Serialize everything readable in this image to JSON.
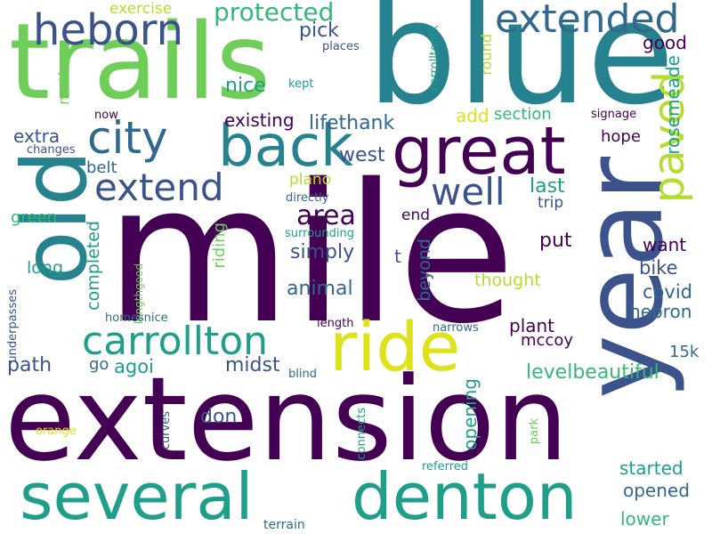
{
  "colors": {
    "dark_purple": "#440154",
    "indigo": "#3b528b",
    "slate_blue": "#31688e",
    "teal": "#26828e",
    "green_teal": "#1f9e89",
    "green": "#35b779",
    "light_green": "#6ece58",
    "lime": "#b5de2b",
    "yellow": "#dde318"
  },
  "words": {
    "mile": "mile",
    "extension": "extension",
    "trails": "trails",
    "blue": "blue",
    "year": "year",
    "old": "old",
    "several": "several",
    "denton": "denton",
    "great": "great",
    "ride": "ride",
    "back": "back",
    "city": "city",
    "heborn": "heborn",
    "extended": "extended",
    "carrollton": "carrollton",
    "paved": "paved",
    "extend": "extend",
    "well": "well",
    "protected": "protected",
    "area": "area",
    "rosemeade": "rosemeade",
    "lifethank": "lifethank",
    "exercise": "exercise",
    "pick": "pick",
    "places": "places",
    "good": "good",
    "nice": "nice",
    "kept": "kept",
    "carrolltontx": "carrolltontx",
    "round": "round",
    "existing": "existing",
    "add": "add",
    "section": "section",
    "signage": "signage",
    "now": "now",
    "extra": "extra",
    "changes": "changes",
    "north": "north",
    "west": "west",
    "hope": "hope",
    "belt": "belt",
    "plano": "plano",
    "last": "last",
    "directly": "directly",
    "trip": "trip",
    "green_word": "green",
    "end": "end",
    "surrounding": "surrounding",
    "simply": "simply",
    "put": "put",
    "want": "want",
    "long": "long",
    "t": "t",
    "bike": "bike",
    "completed": "completed",
    "riding": "riding",
    "thought": "thought",
    "covid": "covid",
    "animal": "animal",
    "beyond": "beyond",
    "lengthgood": "lengthgood",
    "hebron": "hebron",
    "plant": "plant",
    "homesnice": "homesnice",
    "underpasses": "underpasses",
    "length": "length",
    "narrows": "narrows",
    "mccoy": "mccoy",
    "path": "path",
    "go": "go",
    "agoi": "agoi",
    "midst": "midst",
    "blind": "blind",
    "levelbeautiful": "levelbeautiful",
    "fifteen_k": "15k",
    "don": "don",
    "opening": "opening",
    "orange": "orange",
    "curves": "curves",
    "connects": "connects",
    "park": "park",
    "referred": "referred",
    "started": "started",
    "opened": "opened",
    "lower": "lower",
    "terrain": "terrain"
  }
}
